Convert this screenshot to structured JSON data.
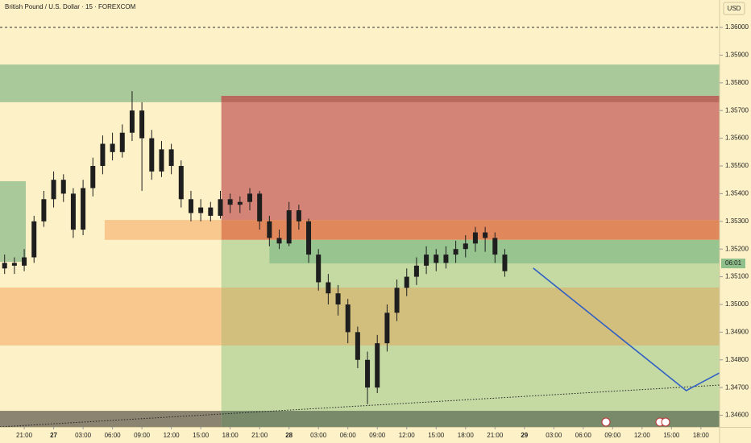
{
  "chart_data": {
    "type": "candlestick",
    "title": "British Pound / U.S. Dollar · 15 · FOREXCOM",
    "currency": "USD",
    "countdown": "06:01",
    "candle_color": "#1e1e1e",
    "x": [
      -2,
      -1,
      0,
      1,
      2,
      3,
      4,
      5,
      6,
      7,
      8,
      9,
      10,
      11,
      12,
      13,
      14,
      15,
      16,
      17,
      18,
      19,
      20,
      21,
      22,
      23,
      24,
      25,
      26,
      27,
      28,
      29,
      30,
      31,
      32,
      33,
      34,
      35,
      36,
      37,
      38,
      39,
      40,
      41,
      42,
      43,
      44,
      45,
      46,
      47,
      48,
      49
    ],
    "open": [
      1.3513,
      1.3515,
      1.3514,
      1.3517,
      1.353,
      1.3538,
      1.3545,
      1.354,
      1.3527,
      1.3542,
      1.355,
      1.3558,
      1.3555,
      1.3562,
      1.357,
      1.356,
      1.3548,
      1.3556,
      1.355,
      1.3538,
      1.3533,
      1.3535,
      1.3532,
      1.3538,
      1.3536,
      1.3537,
      1.354,
      1.353,
      1.3524,
      1.3522,
      1.3534,
      1.353,
      1.3518,
      1.3508,
      1.3504,
      1.35,
      1.349,
      1.348,
      1.347,
      1.3486,
      1.3497,
      1.3506,
      1.351,
      1.3514,
      1.3518,
      1.3515,
      1.3518,
      1.352,
      1.3522,
      1.3526,
      1.3524,
      1.3518
    ],
    "high": [
      1.3518,
      1.3517,
      1.352,
      1.3532,
      1.3541,
      1.3548,
      1.3547,
      1.3542,
      1.3545,
      1.3553,
      1.3561,
      1.3562,
      1.3565,
      1.3577,
      1.3573,
      1.3563,
      1.3559,
      1.3558,
      1.3552,
      1.3541,
      1.3538,
      1.3537,
      1.3541,
      1.354,
      1.3539,
      1.3542,
      1.3541,
      1.3532,
      1.3527,
      1.3537,
      1.3536,
      1.3531,
      1.352,
      1.3511,
      1.3507,
      1.3502,
      1.3492,
      1.3483,
      1.3489,
      1.35,
      1.3509,
      1.3513,
      1.3517,
      1.3521,
      1.352,
      1.3521,
      1.3523,
      1.3525,
      1.3528,
      1.3528,
      1.3526,
      1.352
    ],
    "low": [
      1.3511,
      1.3511,
      1.3512,
      1.3515,
      1.3528,
      1.3535,
      1.3537,
      1.3524,
      1.3525,
      1.3539,
      1.3547,
      1.3552,
      1.3553,
      1.3559,
      1.3541,
      1.3545,
      1.3546,
      1.3547,
      1.3535,
      1.353,
      1.353,
      1.353,
      1.3531,
      1.3533,
      1.3533,
      1.3534,
      1.3527,
      1.3521,
      1.352,
      1.3521,
      1.3527,
      1.3515,
      1.3505,
      1.35,
      1.3496,
      1.3486,
      1.3477,
      1.3464,
      1.3468,
      1.3483,
      1.3494,
      1.3503,
      1.3507,
      1.3511,
      1.3512,
      1.3513,
      1.3515,
      1.3517,
      1.3519,
      1.3519,
      1.3515,
      1.351
    ],
    "close": [
      1.3515,
      1.3514,
      1.3517,
      1.353,
      1.3538,
      1.3545,
      1.354,
      1.3527,
      1.3542,
      1.355,
      1.3558,
      1.3555,
      1.3562,
      1.357,
      1.356,
      1.3548,
      1.3556,
      1.355,
      1.3538,
      1.3533,
      1.3535,
      1.3532,
      1.3538,
      1.3536,
      1.3537,
      1.354,
      1.353,
      1.3524,
      1.3522,
      1.3534,
      1.353,
      1.3518,
      1.3508,
      1.3504,
      1.35,
      1.349,
      1.348,
      1.347,
      1.3486,
      1.3497,
      1.3506,
      1.351,
      1.3514,
      1.3518,
      1.3515,
      1.3518,
      1.352,
      1.3522,
      1.3526,
      1.3524,
      1.3518,
      1.3512
    ],
    "xlim": [
      -2.47,
      70.9
    ],
    "ylim": [
      1.34558,
      1.36099
    ],
    "yticks": [
      {
        "value": 1.36,
        "label": "1.36000"
      },
      {
        "value": 1.359,
        "label": "1.35900"
      },
      {
        "value": 1.358,
        "label": "1.35800"
      },
      {
        "value": 1.357,
        "label": "1.35700"
      },
      {
        "value": 1.356,
        "label": "1.35600"
      },
      {
        "value": 1.355,
        "label": "1.35500"
      },
      {
        "value": 1.354,
        "label": "1.35400"
      },
      {
        "value": 1.353,
        "label": "1.35300"
      },
      {
        "value": 1.352,
        "label": "1.35200"
      },
      {
        "value": 1.351,
        "label": "1.35100"
      },
      {
        "value": 1.35,
        "label": "1.35000"
      },
      {
        "value": 1.349,
        "label": "1.34900"
      },
      {
        "value": 1.348,
        "label": "1.34800"
      },
      {
        "value": 1.347,
        "label": "1.34700"
      },
      {
        "value": 1.346,
        "label": "1.34600"
      }
    ],
    "xticks": [
      {
        "value": 0,
        "label": "21:00"
      },
      {
        "value": 3,
        "label": "27"
      },
      {
        "value": 6,
        "label": "03:00"
      },
      {
        "value": 9,
        "label": "06:00"
      },
      {
        "value": 12,
        "label": "09:00"
      },
      {
        "value": 15,
        "label": "12:00"
      },
      {
        "value": 18,
        "label": "15:00"
      },
      {
        "value": 21,
        "label": "18:00"
      },
      {
        "value": 24,
        "label": "21:00"
      },
      {
        "value": 27,
        "label": "28"
      },
      {
        "value": 30,
        "label": "03:00"
      },
      {
        "value": 33,
        "label": "06:00"
      },
      {
        "value": 36,
        "label": "09:00"
      },
      {
        "value": 39,
        "label": "12:00"
      },
      {
        "value": 42,
        "label": "15:00"
      },
      {
        "value": 45,
        "label": "18:00"
      },
      {
        "value": 48,
        "label": "21:00"
      },
      {
        "value": 51,
        "label": "29"
      },
      {
        "value": 54,
        "label": "03:00"
      },
      {
        "value": 57,
        "label": "06:00"
      },
      {
        "value": 60,
        "label": "09:00"
      },
      {
        "value": 63,
        "label": "12:00"
      },
      {
        "value": 66,
        "label": "15:00"
      },
      {
        "value": 69,
        "label": "18:00"
      }
    ],
    "zones": [
      {
        "x": [
          -2.47,
          70.9
        ],
        "price": [
          1.35866,
          1.3573
        ],
        "color": "#a9c99a"
      },
      {
        "x": [
          -2.47,
          0.16
        ],
        "price": [
          1.35445,
          1.35154
        ],
        "color": "#a9c99a"
      },
      {
        "x": [
          8.2,
          20.1
        ],
        "price": [
          1.35305,
          1.35233
        ],
        "color": "#f8c88f"
      },
      {
        "x": [
          20.1,
          70.9
        ],
        "price": [
          1.35753,
          1.35305
        ],
        "color": "#d48476"
      },
      {
        "x": [
          20.1,
          70.9
        ],
        "price": [
          1.35753,
          1.3573
        ],
        "color": "#b96a5c"
      },
      {
        "x": [
          20.1,
          70.9
        ],
        "price": [
          1.35305,
          1.35233
        ],
        "color": "#e0875c"
      },
      {
        "x": [
          20.1,
          70.9
        ],
        "price": [
          1.35233,
          1.34558
        ],
        "color": "#c5d9a3"
      },
      {
        "x": [
          25.0,
          70.9
        ],
        "price": [
          1.35233,
          1.35148
        ],
        "color": "#97c48f"
      },
      {
        "x": [
          -2.47,
          20.1
        ],
        "price": [
          1.35061,
          1.34852
        ],
        "color": "#f8c88f"
      },
      {
        "x": [
          20.1,
          70.9
        ],
        "price": [
          1.35061,
          1.34852
        ],
        "color": "#d2bf7e"
      },
      {
        "x": [
          -2.47,
          20.1
        ],
        "price": [
          1.34616,
          1.34558
        ],
        "color": "#8a8470"
      },
      {
        "x": [
          20.1,
          70.9
        ],
        "price": [
          1.34616,
          1.34558
        ],
        "color": "#798a6b"
      }
    ],
    "dashed_level": 1.36,
    "trendline": {
      "x": [
        -2.47,
        70.9
      ],
      "price": [
        1.34558,
        1.34709
      ]
    },
    "projection": {
      "x": [
        51.9,
        67.5,
        70.9
      ],
      "price": [
        1.35131,
        1.34689,
        1.34753
      ],
      "color": "#2f5fc4"
    },
    "countdown_price": 1.35148
  }
}
